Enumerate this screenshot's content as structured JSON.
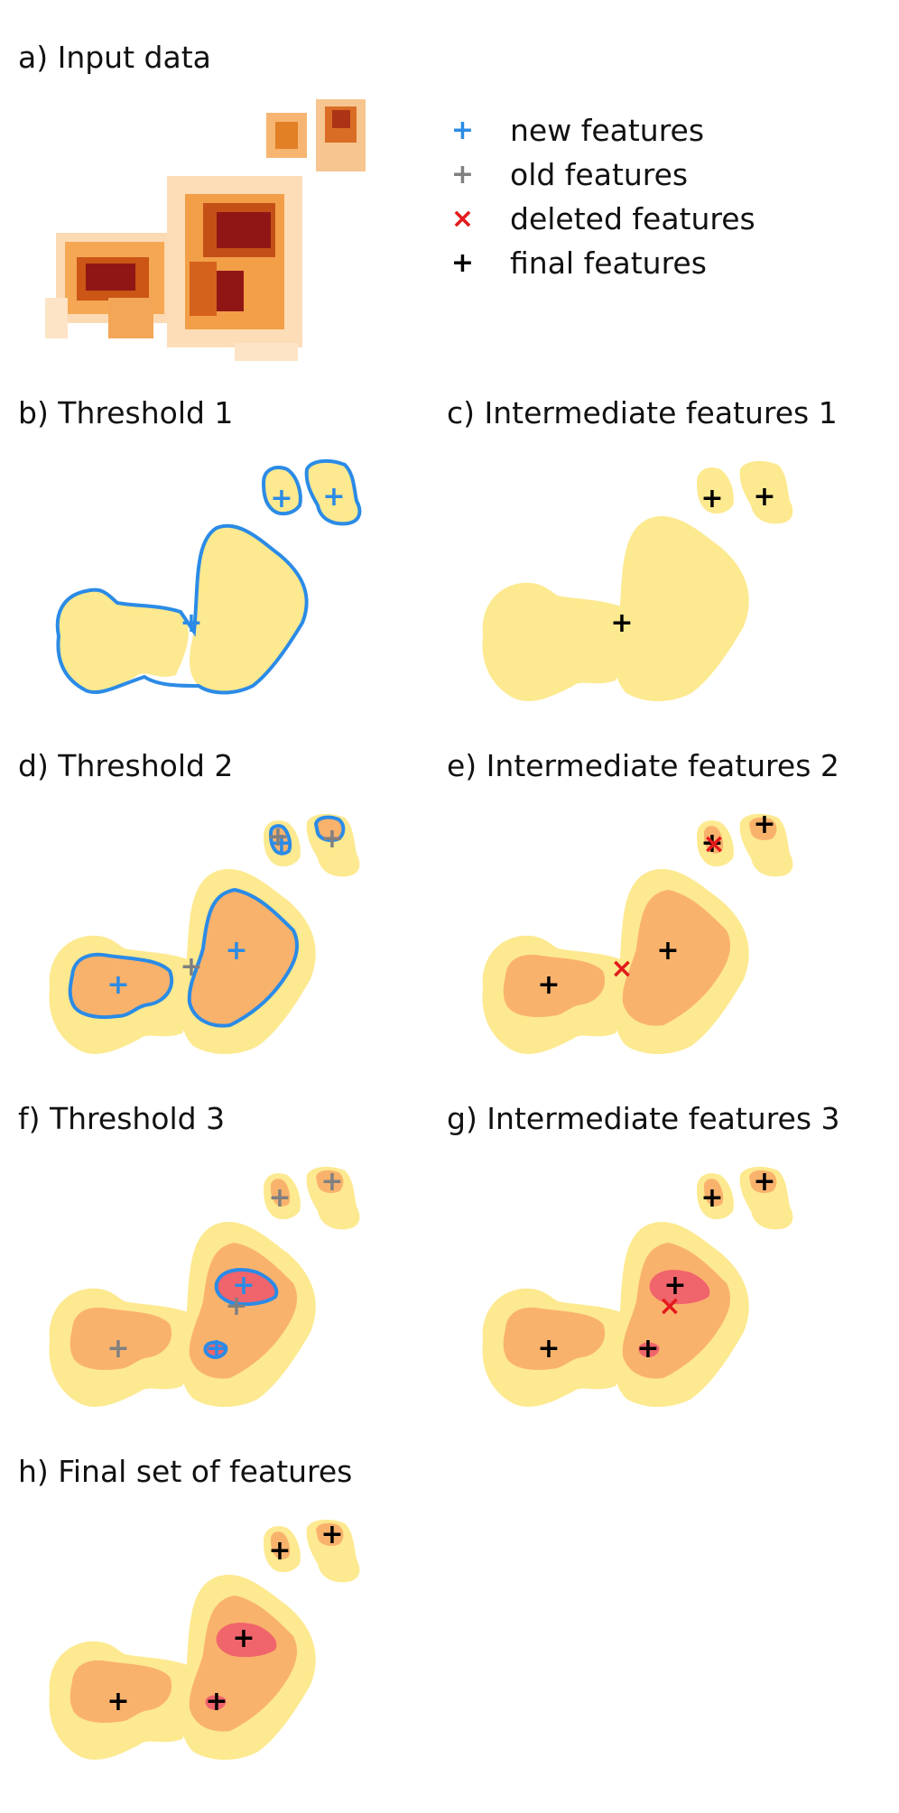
{
  "panels": {
    "a": "a) Input data",
    "b": "b) Threshold 1",
    "c": "c) Intermediate features 1",
    "d": "d) Threshold 2",
    "e": "e) Intermediate features 2",
    "f": "f) Threshold 3",
    "g": "g) Intermediate features 3",
    "h": "h) Final set of features"
  },
  "legend": [
    {
      "label": "new features",
      "symbol": "+",
      "color": "#2b8be6"
    },
    {
      "label": "old features",
      "symbol": "+",
      "color": "#808080"
    },
    {
      "label": "deleted features",
      "symbol": "×",
      "color": "#e31a1c"
    },
    {
      "label": "final features",
      "symbol": "+",
      "color": "#000000"
    }
  ],
  "colors": {
    "threshold1_fill": "#fde98f",
    "threshold2_fill": "#f9b26c",
    "threshold3_fill": "#f0646c",
    "contour": "#2b8be6",
    "heat_dark": "#8b0a0a",
    "heat_mid": "#e8780e",
    "heat_light": "#fbd39b"
  }
}
